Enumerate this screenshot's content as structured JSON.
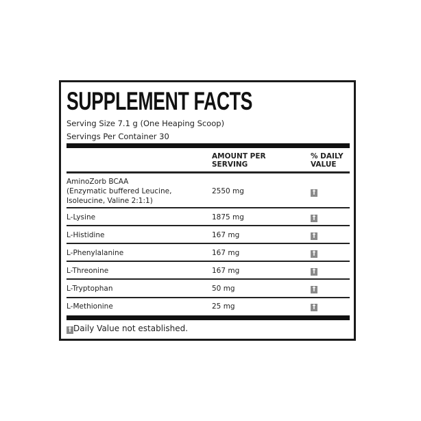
{
  "title": "SUPPLEMENT FACTS",
  "serving_size": "Serving Size 7.1 g (One Heaping Scoop)",
  "servings_per_container": "Servings Per Container 30",
  "headers": {
    "amount_line1": "AMOUNT PER",
    "amount_line2": "SERVING",
    "dv_line1": "% DAILY",
    "dv_line2": "VALUE"
  },
  "rows": [
    {
      "name_line1": "AminoZorb BCAA",
      "name_line2": "(Enzymatic buffered Leucine,",
      "name_line3": "Isoleucine, Valine 2:1:1)",
      "amount": "2550 mg",
      "dv": "†"
    },
    {
      "name": "L-Lysine",
      "amount": "1875 mg",
      "dv": "†"
    },
    {
      "name": "L-Histidine",
      "amount": "167 mg",
      "dv": "†"
    },
    {
      "name": "L-Phenylalanine",
      "amount": "167 mg",
      "dv": "†"
    },
    {
      "name": "L-Threonine",
      "amount": "167 mg",
      "dv": "†"
    },
    {
      "name": "L-Tryptophan",
      "amount": "50 mg",
      "dv": "†"
    },
    {
      "name": "L-Methionine",
      "amount": "25 mg",
      "dv": "†"
    }
  ],
  "footnote": {
    "symbol": "†",
    "text": "Daily Value not established."
  }
}
